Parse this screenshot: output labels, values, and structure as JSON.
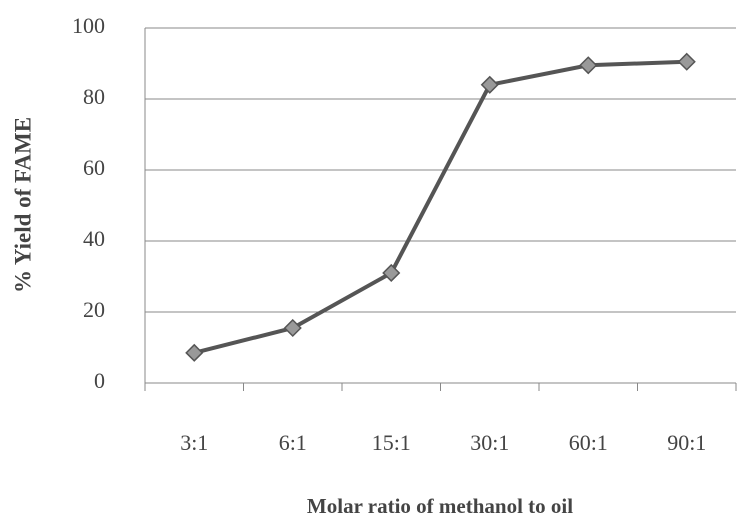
{
  "chart_data": {
    "type": "line",
    "x_label": "Molar ratio of methanol to oil",
    "y_label": "% Yield of FAME",
    "categories": [
      "3:1",
      "6:1",
      "15:1",
      "30:1",
      "60:1",
      "90:1"
    ],
    "series": [
      {
        "name": "% Yield of FAME",
        "color": "#555555",
        "values": [
          8.5,
          15.5,
          31,
          84,
          89.5,
          90.5
        ]
      }
    ],
    "ylim": [
      0,
      100
    ],
    "yticks": [
      0,
      20,
      40,
      60,
      80,
      100
    ],
    "grid": true
  }
}
